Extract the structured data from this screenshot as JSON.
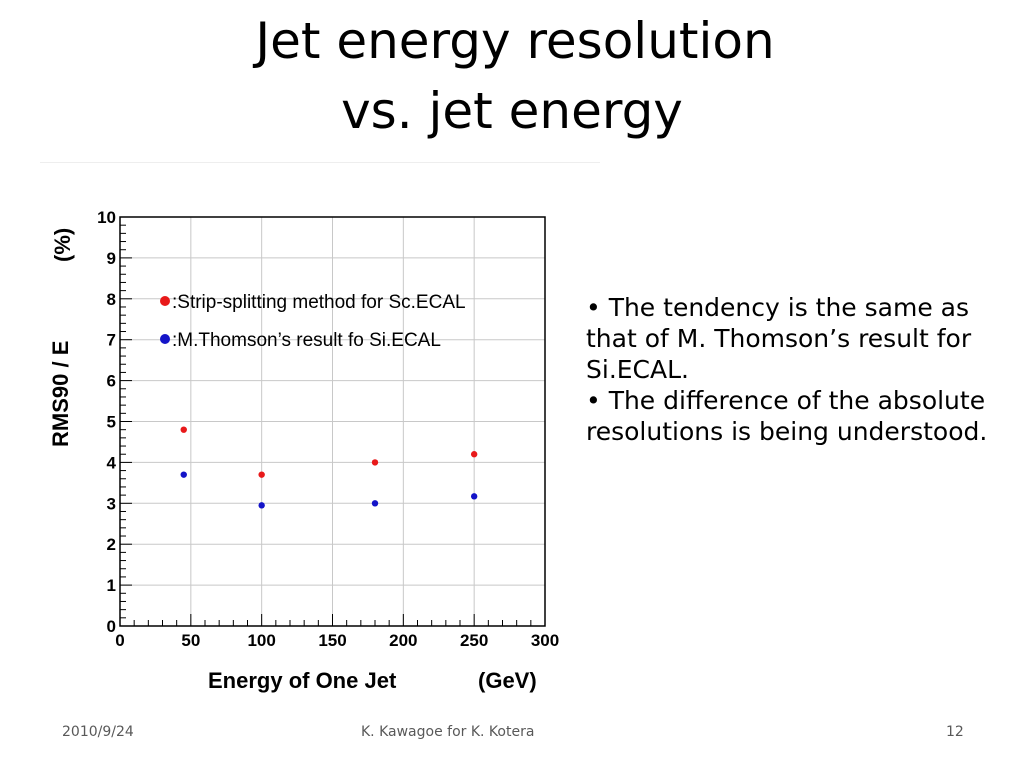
{
  "slide": {
    "title_line1": "Jet energy resolution",
    "title_line2": "vs. jet energy",
    "bullets": [
      "• The tendency is the same as",
      "that of M. Thomson’s result for",
      "Si.ECAL.",
      "• The difference of the absolute",
      "resolutions is being understood."
    ],
    "footer": {
      "date": "2010/9/24",
      "author": "K. Kawagoe for K. Kotera",
      "page": "12"
    }
  },
  "chart_data": {
    "type": "scatter",
    "title": "",
    "xlabel": "Energy of One Jet",
    "xlabel_unit": "(GeV)",
    "ylabel": "RMS90 / E",
    "ylabel_unit": "(%)",
    "xlim": [
      0,
      300
    ],
    "ylim": [
      0,
      10
    ],
    "xticks": [
      0,
      50,
      100,
      150,
      200,
      250,
      300
    ],
    "yticks": [
      0,
      1,
      2,
      3,
      4,
      5,
      6,
      7,
      8,
      9,
      10
    ],
    "grid": true,
    "legend_position": "top-right",
    "series": [
      {
        "name": ":Strip-splitting method for Sc.ECAL",
        "color": "#e8191a",
        "x": [
          45,
          100,
          180,
          250
        ],
        "y": [
          4.8,
          3.7,
          4.0,
          4.2
        ]
      },
      {
        "name": ":M.Thomson’s result fo Si.ECAL",
        "color": "#1414c8",
        "x": [
          45,
          100,
          180,
          250
        ],
        "y": [
          3.7,
          2.95,
          3.0,
          3.17
        ]
      }
    ]
  }
}
